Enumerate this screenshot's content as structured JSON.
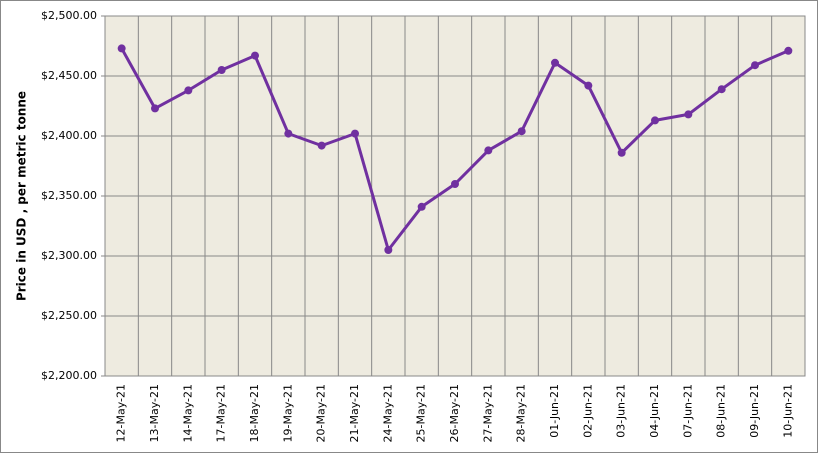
{
  "chart_data": {
    "type": "line",
    "y_label": "Price in USD , per metric tonne",
    "categories": [
      "12-May-21",
      "13-May-21",
      "14-May-21",
      "17-May-21",
      "18-May-21",
      "19-May-21",
      "20-May-21",
      "21-May-21",
      "24-May-21",
      "25-May-21",
      "26-May-21",
      "27-May-21",
      "28-May-21",
      "01-Jun-21",
      "02-Jun-21",
      "03-Jun-21",
      "04-Jun-21",
      "07-Jun-21",
      "08-Jun-21",
      "09-Jun-21",
      "10-Jun-21"
    ],
    "values": [
      2473,
      2423,
      2438,
      2455,
      2467,
      2402,
      2392,
      2402,
      2305,
      2341,
      2360,
      2388,
      2404,
      2461,
      2442,
      2386,
      2413,
      2418,
      2439,
      2459,
      2471
    ],
    "color": "#7030a0",
    "ylim": [
      2200,
      2500
    ],
    "yticks": [
      {
        "value": 2200,
        "label": "$2,200.00"
      },
      {
        "value": 2250,
        "label": "$2,250.00"
      },
      {
        "value": 2300,
        "label": "$2,300.00"
      },
      {
        "value": 2350,
        "label": "$2,350.00"
      },
      {
        "value": 2400,
        "label": "$2,400.00"
      },
      {
        "value": 2450,
        "label": "$2,450.00"
      },
      {
        "value": 2500,
        "label": "$2,500.00"
      }
    ],
    "grid": true
  }
}
